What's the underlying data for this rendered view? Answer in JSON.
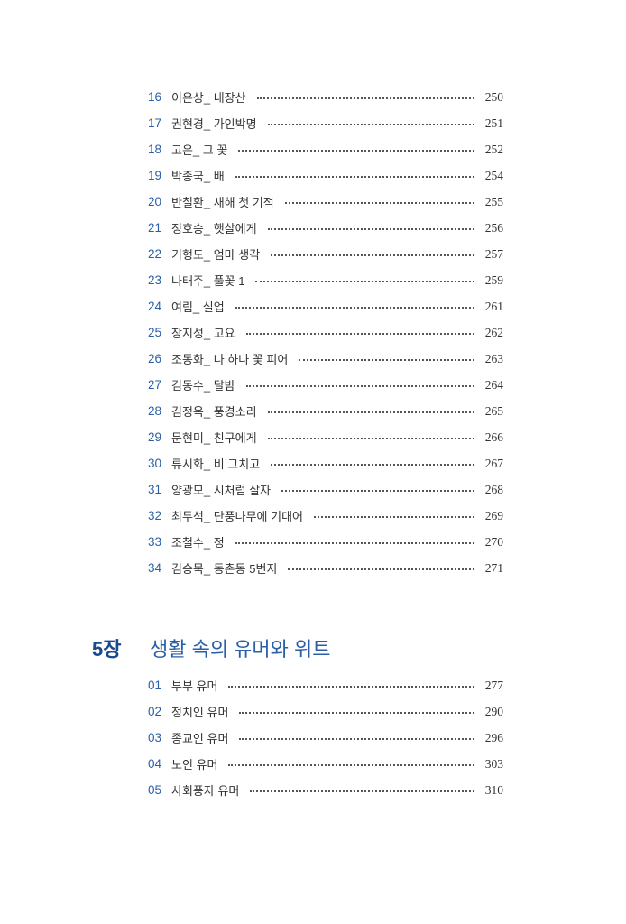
{
  "section4_entries": [
    {
      "num": "16",
      "title": "이은상_ 내장산",
      "page": "250"
    },
    {
      "num": "17",
      "title": "권현경_ 가인박명",
      "page": "251"
    },
    {
      "num": "18",
      "title": "고은_ 그 꽃",
      "page": "252"
    },
    {
      "num": "19",
      "title": "박종국_ 배",
      "page": "254"
    },
    {
      "num": "20",
      "title": "반칠환_ 새해 첫 기적",
      "page": "255"
    },
    {
      "num": "21",
      "title": "정호승_ 햇살에게",
      "page": "256"
    },
    {
      "num": "22",
      "title": "기형도_ 엄마 생각",
      "page": "257"
    },
    {
      "num": "23",
      "title": "나태주_ 풀꽃 1",
      "page": "259"
    },
    {
      "num": "24",
      "title": "여림_ 실업",
      "page": "261"
    },
    {
      "num": "25",
      "title": "장지성_ 고요",
      "page": "262"
    },
    {
      "num": "26",
      "title": "조동화_ 나 하나 꽃 피어",
      "page": "263"
    },
    {
      "num": "27",
      "title": "김동수_ 달밤",
      "page": "264"
    },
    {
      "num": "28",
      "title": "김정옥_ 풍경소리",
      "page": "265"
    },
    {
      "num": "29",
      "title": "문현미_ 친구에게",
      "page": "266"
    },
    {
      "num": "30",
      "title": "류시화_ 비 그치고",
      "page": "267"
    },
    {
      "num": "31",
      "title": "양광모_ 시처럼 살자",
      "page": "268"
    },
    {
      "num": "32",
      "title": "최두석_ 단풍나무에 기대어",
      "page": "269"
    },
    {
      "num": "33",
      "title": "조철수_ 정",
      "page": "270"
    },
    {
      "num": "34",
      "title": "김승묵_ 동촌동 5번지",
      "page": "271"
    }
  ],
  "chapter5": {
    "number": "5장",
    "title": "생활 속의 유머와 위트",
    "entries": [
      {
        "num": "01",
        "title": "부부 유머",
        "page": "277"
      },
      {
        "num": "02",
        "title": "정치인 유머",
        "page": "290"
      },
      {
        "num": "03",
        "title": "종교인 유머",
        "page": "296"
      },
      {
        "num": "04",
        "title": "노인 유머",
        "page": "303"
      },
      {
        "num": "05",
        "title": "사회풍자 유머",
        "page": "310"
      }
    ]
  },
  "colors": {
    "accent": "#2a5fa8",
    "chapter": "#1a4a8c",
    "text": "#333333"
  }
}
